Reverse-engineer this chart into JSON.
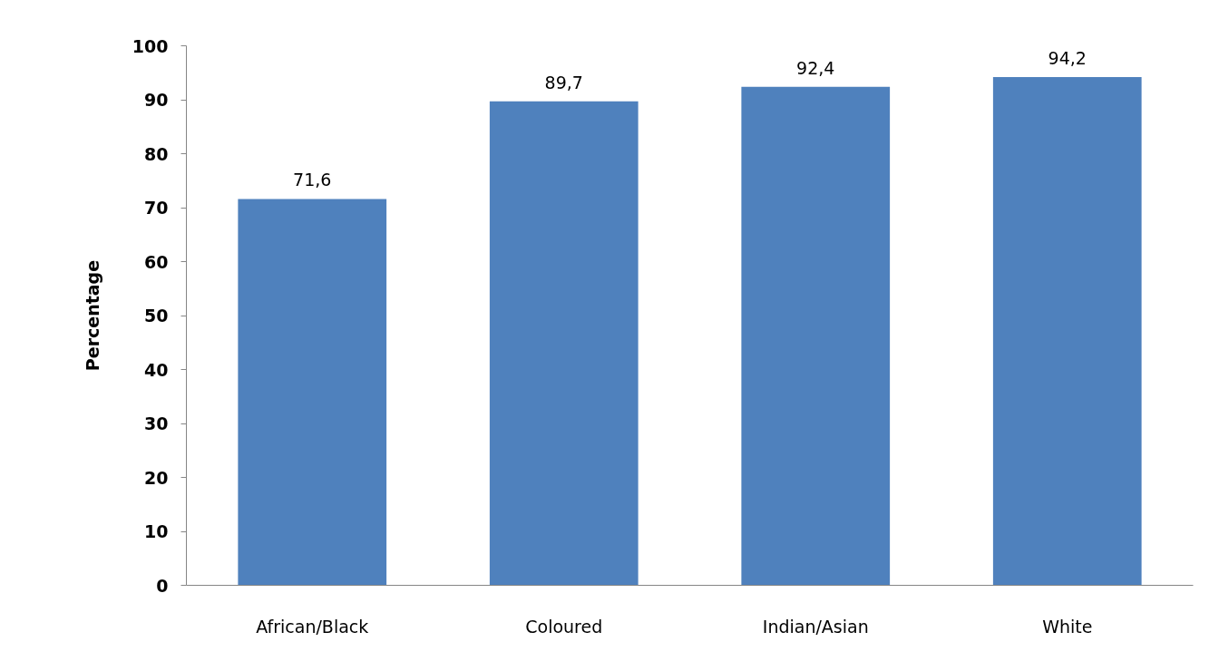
{
  "chart_data": {
    "type": "bar",
    "ylabel": "Percentage",
    "categories": [
      "African/Black",
      "Coloured",
      "Indian/Asian",
      "White"
    ],
    "values": [
      71.6,
      89.7,
      92.4,
      94.2
    ],
    "value_labels": [
      "71,6",
      "89,7",
      "92,4",
      "94,2"
    ],
    "color": "#4f81bd",
    "ylim": [
      0,
      100
    ],
    "yticks": [
      0,
      10,
      20,
      30,
      40,
      50,
      60,
      70,
      80,
      90,
      100
    ],
    "grid": false
  }
}
